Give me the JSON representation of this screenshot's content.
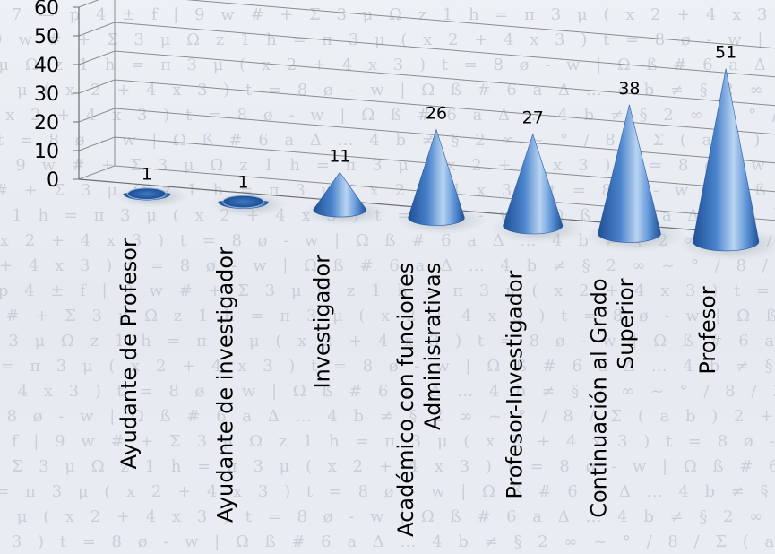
{
  "chart_data": {
    "type": "bar",
    "mark_shape": "3d-cone",
    "title": "",
    "xlabel": "",
    "ylabel": "",
    "ylim": [
      0,
      60
    ],
    "yticks": [
      0,
      10,
      20,
      30,
      40,
      50,
      60
    ],
    "grid": true,
    "legend": "none",
    "categories": [
      [
        "Ayudante de Profesor"
      ],
      [
        "Ayudante de investigador"
      ],
      [
        "Investigador"
      ],
      [
        "Académico con funciones",
        "Administrativas"
      ],
      [
        "Profesor-Investigador"
      ],
      [
        "Continuación al Grado",
        "Superior"
      ],
      [
        "Profesor"
      ]
    ],
    "values": [
      1,
      1,
      11,
      26,
      27,
      38,
      51
    ],
    "data_labels": [
      "1",
      "1",
      "11",
      "26",
      "27",
      "38",
      "51"
    ],
    "colors": {
      "cone_light": "#b9d4f2",
      "cone_mid": "#4a83cc",
      "cone_dark": "#1f4f94",
      "grid": "#8c8c8c",
      "axis": "#6e6e6e"
    }
  }
}
